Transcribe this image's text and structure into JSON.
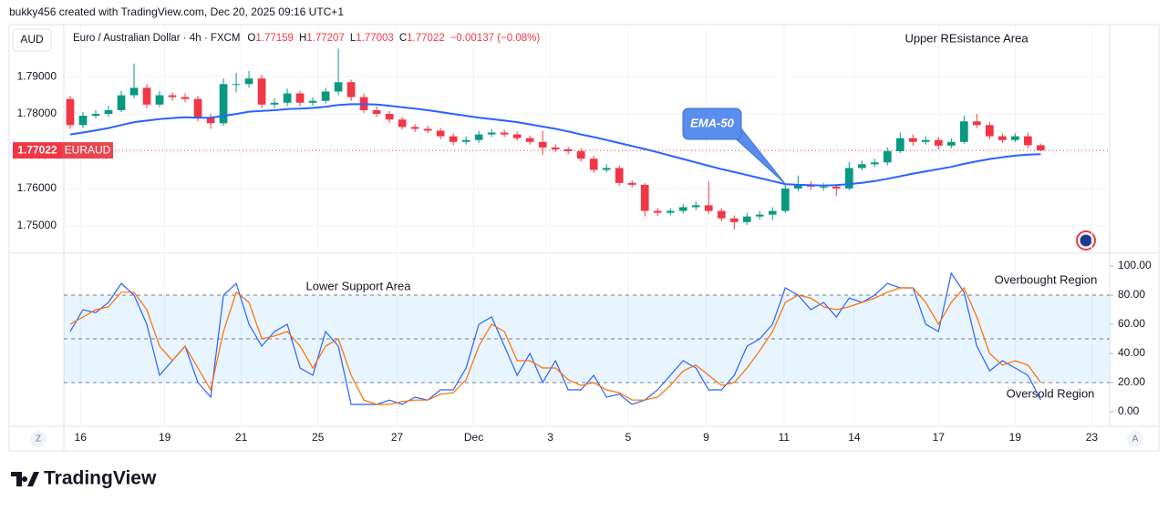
{
  "header": {
    "attribution": "bukky456 created with TradingView.com, Dec 20, 2025 09:16 UTC+1"
  },
  "footer": {
    "brand": "TradingView",
    "buttons": [
      "Z",
      "A"
    ]
  },
  "chart_data": [
    {
      "type": "candlestick",
      "symbol_title": "Euro / Australian Dollar · 4h · FXCM",
      "ohlc_legend": [
        {
          "key": "O",
          "value": 1.77159
        },
        {
          "key": "H",
          "value": 1.77207
        },
        {
          "key": "L",
          "value": 1.77003
        },
        {
          "key": "C",
          "value": 1.77022
        }
      ],
      "change_label": "−0.00137 (−0.08%)",
      "currency": "AUD",
      "annotations": [
        "Upper REsistance Area"
      ],
      "up_color": "#089981",
      "down_color": "#f23645",
      "grid": true,
      "last_price": 1.77022,
      "last_price_tag": "EURAUD",
      "xlim": [
        -0.5,
        81.4
      ],
      "xticks": [
        {
          "value": 0.8,
          "label": "16"
        },
        {
          "value": 7.4,
          "label": "19"
        },
        {
          "value": 13.4,
          "label": "21"
        },
        {
          "value": 19.4,
          "label": "25"
        },
        {
          "value": 25.6,
          "label": "27"
        },
        {
          "value": 31.6,
          "label": "Dec"
        },
        {
          "value": 37.6,
          "label": "3"
        },
        {
          "value": 43.7,
          "label": "5"
        },
        {
          "value": 49.8,
          "label": "9"
        },
        {
          "value": 55.9,
          "label": "11"
        },
        {
          "value": 61.4,
          "label": "14"
        },
        {
          "value": 68.0,
          "label": "17"
        },
        {
          "value": 74.0,
          "label": "19"
        },
        {
          "value": 80.0,
          "label": "23"
        }
      ],
      "ylim": [
        1.7429,
        1.8037
      ],
      "yticks": [
        {
          "value": 1.75,
          "label": "1.75000"
        },
        {
          "value": 1.76,
          "label": "1.76000"
        },
        {
          "value": 1.78,
          "label": "1.78000"
        },
        {
          "value": 1.79,
          "label": "1.79000"
        }
      ],
      "x": [
        0,
        1,
        2,
        3,
        4,
        5,
        6,
        7,
        8,
        9,
        10,
        11,
        12,
        13,
        14,
        15,
        16,
        17,
        18,
        19,
        20,
        21,
        22,
        23,
        24,
        25,
        26,
        27,
        28,
        29,
        30,
        31,
        32,
        33,
        34,
        35,
        36,
        37,
        38,
        39,
        40,
        41,
        42,
        43,
        44,
        45,
        46,
        47,
        48,
        49,
        50,
        51,
        52,
        53,
        54,
        55,
        56,
        57,
        58,
        59,
        60,
        61,
        62,
        63,
        64,
        65,
        66,
        67,
        68,
        69,
        70,
        71,
        72,
        73,
        74,
        75,
        76
      ],
      "open": [
        1.784,
        1.777,
        1.7795,
        1.78,
        1.781,
        1.785,
        1.787,
        1.7825,
        1.785,
        1.7845,
        1.784,
        1.779,
        1.7775,
        1.788,
        1.788,
        1.7895,
        1.7825,
        1.783,
        1.7855,
        1.783,
        1.7835,
        1.786,
        1.7885,
        1.7845,
        1.781,
        1.78,
        1.7785,
        1.7765,
        1.776,
        1.7755,
        1.774,
        1.7725,
        1.773,
        1.7745,
        1.775,
        1.7745,
        1.7735,
        1.7725,
        1.771,
        1.7705,
        1.77,
        1.768,
        1.765,
        1.7655,
        1.7615,
        1.761,
        1.754,
        1.7535,
        1.754,
        1.755,
        1.7555,
        1.754,
        1.752,
        1.751,
        1.7525,
        1.753,
        1.754,
        1.76,
        1.761,
        1.7605,
        1.7605,
        1.76,
        1.7655,
        1.7665,
        1.767,
        1.77,
        1.7735,
        1.7725,
        1.773,
        1.7715,
        1.7725,
        1.778,
        1.777,
        1.774,
        1.773,
        1.774,
        1.77159
      ],
      "high": [
        1.7848,
        1.7805,
        1.781,
        1.7822,
        1.7862,
        1.7935,
        1.788,
        1.7862,
        1.7858,
        1.7855,
        1.7848,
        1.78,
        1.7895,
        1.791,
        1.7915,
        1.7905,
        1.7842,
        1.7868,
        1.7862,
        1.7845,
        1.787,
        1.7975,
        1.7892,
        1.7855,
        1.782,
        1.7808,
        1.7792,
        1.7772,
        1.7768,
        1.7762,
        1.7748,
        1.774,
        1.7755,
        1.776,
        1.7758,
        1.7752,
        1.7742,
        1.7755,
        1.7718,
        1.7712,
        1.7708,
        1.7688,
        1.7665,
        1.7662,
        1.7622,
        1.7615,
        1.7548,
        1.7548,
        1.7558,
        1.7565,
        1.762,
        1.7548,
        1.7528,
        1.7535,
        1.754,
        1.755,
        1.761,
        1.7635,
        1.762,
        1.7615,
        1.7612,
        1.7672,
        1.7675,
        1.768,
        1.771,
        1.775,
        1.7745,
        1.774,
        1.7738,
        1.7735,
        1.7795,
        1.78,
        1.7778,
        1.7748,
        1.7748,
        1.775,
        1.77207
      ],
      "low": [
        1.776,
        1.7762,
        1.7788,
        1.7792,
        1.7805,
        1.7842,
        1.7815,
        1.7818,
        1.7836,
        1.7832,
        1.778,
        1.776,
        1.7768,
        1.7858,
        1.787,
        1.7815,
        1.7815,
        1.7822,
        1.782,
        1.7822,
        1.7828,
        1.785,
        1.7835,
        1.7802,
        1.7792,
        1.7776,
        1.7758,
        1.7752,
        1.7748,
        1.7732,
        1.7716,
        1.7718,
        1.7722,
        1.7738,
        1.7738,
        1.7728,
        1.7718,
        1.769,
        1.7698,
        1.7692,
        1.7672,
        1.7642,
        1.7643,
        1.7608,
        1.7603,
        1.7525,
        1.7526,
        1.7528,
        1.7533,
        1.7542,
        1.7532,
        1.7512,
        1.749,
        1.7502,
        1.7517,
        1.7515,
        1.7535,
        1.7592,
        1.7596,
        1.7595,
        1.758,
        1.7595,
        1.7648,
        1.7658,
        1.7662,
        1.7695,
        1.7715,
        1.7718,
        1.7705,
        1.7708,
        1.772,
        1.7762,
        1.7732,
        1.7722,
        1.7724,
        1.7708,
        1.77003
      ],
      "close": [
        1.777,
        1.7795,
        1.78,
        1.781,
        1.785,
        1.787,
        1.7825,
        1.785,
        1.7845,
        1.784,
        1.779,
        1.7775,
        1.788,
        1.788,
        1.7895,
        1.7825,
        1.783,
        1.7855,
        1.783,
        1.7835,
        1.786,
        1.7885,
        1.7845,
        1.781,
        1.78,
        1.7785,
        1.7765,
        1.776,
        1.7755,
        1.774,
        1.7725,
        1.773,
        1.7745,
        1.775,
        1.7745,
        1.7735,
        1.7725,
        1.771,
        1.7705,
        1.77,
        1.768,
        1.765,
        1.7655,
        1.7615,
        1.761,
        1.754,
        1.7535,
        1.754,
        1.755,
        1.7555,
        1.754,
        1.752,
        1.751,
        1.7525,
        1.753,
        1.754,
        1.76,
        1.761,
        1.7605,
        1.7605,
        1.76,
        1.7655,
        1.7665,
        1.767,
        1.77,
        1.7735,
        1.7725,
        1.773,
        1.7715,
        1.7725,
        1.778,
        1.777,
        1.774,
        1.773,
        1.774,
        1.7716,
        1.77022
      ],
      "series": [
        {
          "name": "EMA-50",
          "color": "#2962ff",
          "values": [
            1.7745,
            1.775,
            1.7756,
            1.7762,
            1.777,
            1.7778,
            1.7782,
            1.7786,
            1.7789,
            1.7791,
            1.779,
            1.779,
            1.7795,
            1.78,
            1.7806,
            1.7808,
            1.781,
            1.7813,
            1.7814,
            1.7816,
            1.7819,
            1.7824,
            1.7826,
            1.7826,
            1.7825,
            1.7822,
            1.7818,
            1.7814,
            1.781,
            1.7805,
            1.78,
            1.7795,
            1.779,
            1.7786,
            1.7782,
            1.7778,
            1.7772,
            1.7766,
            1.776,
            1.7753,
            1.7745,
            1.7738,
            1.773,
            1.7722,
            1.7714,
            1.7706,
            1.7697,
            1.7688,
            1.7679,
            1.767,
            1.7661,
            1.7652,
            1.7644,
            1.7636,
            1.7628,
            1.762,
            1.7612,
            1.761,
            1.7609,
            1.7608,
            1.7609,
            1.7612,
            1.7615,
            1.762,
            1.7626,
            1.7633,
            1.764,
            1.7646,
            1.7652,
            1.7658,
            1.7666,
            1.7673,
            1.7679,
            1.7684,
            1.7688,
            1.7691,
            1.7692
          ]
        }
      ]
    },
    {
      "type": "line",
      "annotations": [
        "Lower Support Area",
        "Overbought Region",
        "Oversold Region"
      ],
      "bands": [
        80,
        50,
        20
      ],
      "band_color": "#2196f3",
      "grid": true,
      "xlim": [
        -0.5,
        81.4
      ],
      "ylim": [
        -8.75,
        107.5
      ],
      "yticks": [
        {
          "value": 0,
          "label": "0.00"
        },
        {
          "value": 20,
          "label": "20.00"
        },
        {
          "value": 40,
          "label": "40.00"
        },
        {
          "value": 60,
          "label": "60.00"
        },
        {
          "value": 80,
          "label": "80.00"
        },
        {
          "value": 100,
          "label": "100.00"
        }
      ],
      "x": [
        0,
        1,
        2,
        3,
        4,
        5,
        6,
        7,
        8,
        9,
        10,
        11,
        12,
        13,
        14,
        15,
        16,
        17,
        18,
        19,
        20,
        21,
        22,
        23,
        24,
        25,
        26,
        27,
        28,
        29,
        30,
        31,
        32,
        33,
        34,
        35,
        36,
        37,
        38,
        39,
        40,
        41,
        42,
        43,
        44,
        45,
        46,
        47,
        48,
        49,
        50,
        51,
        52,
        53,
        54,
        55,
        56,
        57,
        58,
        59,
        60,
        61,
        62,
        63,
        64,
        65,
        66,
        67,
        68,
        69,
        70,
        71,
        72,
        73,
        74,
        75,
        76
      ],
      "series": [
        {
          "color": "#2962ff",
          "values": [
            55,
            70,
            68,
            75,
            88,
            80,
            60,
            25,
            35,
            45,
            20,
            10,
            80,
            88,
            60,
            45,
            55,
            60,
            30,
            25,
            55,
            45,
            5,
            5,
            5,
            8,
            5,
            10,
            8,
            15,
            15,
            30,
            60,
            65,
            45,
            25,
            40,
            20,
            35,
            15,
            15,
            25,
            10,
            12,
            5,
            8,
            15,
            25,
            35,
            30,
            15,
            15,
            25,
            45,
            50,
            60,
            85,
            80,
            70,
            75,
            65,
            78,
            75,
            80,
            88,
            85,
            85,
            60,
            55,
            95,
            82,
            45,
            28,
            35,
            30,
            25,
            8
          ]
        },
        {
          "color": "#ff6d00",
          "values": [
            60,
            65,
            70,
            72,
            82,
            82,
            70,
            45,
            35,
            45,
            30,
            15,
            55,
            82,
            75,
            50,
            52,
            55,
            45,
            30,
            45,
            50,
            25,
            8,
            5,
            5,
            7,
            8,
            8,
            12,
            13,
            22,
            45,
            60,
            55,
            35,
            35,
            30,
            30,
            22,
            18,
            20,
            15,
            13,
            8,
            8,
            10,
            18,
            28,
            32,
            25,
            18,
            20,
            30,
            42,
            55,
            75,
            80,
            78,
            72,
            70,
            72,
            75,
            78,
            82,
            85,
            85,
            75,
            60,
            75,
            85,
            65,
            40,
            32,
            35,
            32,
            20
          ]
        }
      ]
    }
  ]
}
